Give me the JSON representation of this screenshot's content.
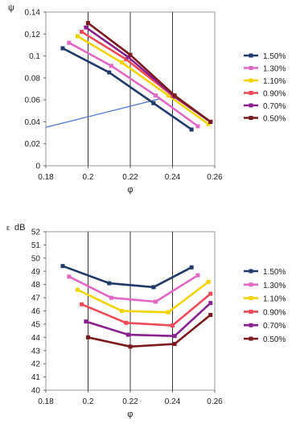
{
  "chart_data": [
    {
      "type": "line",
      "title": "",
      "xlabel": "φ",
      "ylabel": "ψ",
      "xlim": [
        0.18,
        0.26
      ],
      "ylim": [
        0,
        0.14
      ],
      "x_ticks": [
        "0.18",
        "0.2",
        "0.22",
        "0.24",
        "0.26"
      ],
      "y_ticks": [
        "0",
        "0.02",
        "0.04",
        "0.06",
        "0.08",
        "0.1",
        "0.12",
        "0.14"
      ],
      "grid": "vertical",
      "legend_position": "right",
      "series": [
        {
          "name": "1.50%",
          "color": "#1f3a68",
          "x": [
            0.188,
            0.21,
            0.231,
            0.249
          ],
          "y": [
            0.107,
            0.085,
            0.057,
            0.033
          ]
        },
        {
          "name": "1.30%",
          "color": "#e067c4",
          "x": [
            0.191,
            0.211,
            0.232,
            0.252
          ],
          "y": [
            0.112,
            0.091,
            0.064,
            0.036
          ]
        },
        {
          "name": "1.10%",
          "color": "#f0d400",
          "x": [
            0.195,
            0.216,
            0.238,
            0.257
          ],
          "y": [
            0.118,
            0.094,
            0.064,
            0.038
          ]
        },
        {
          "name": "0.90%",
          "color": "#ef4a5a",
          "x": [
            0.197,
            0.218,
            0.24,
            0.258
          ],
          "y": [
            0.122,
            0.097,
            0.064,
            0.04
          ]
        },
        {
          "name": "0.70%",
          "color": "#8a1f8f",
          "x": [
            0.199,
            0.219,
            0.241,
            0.258
          ],
          "y": [
            0.126,
            0.099,
            0.063,
            0.04
          ]
        },
        {
          "name": "0.50%",
          "color": "#7a1a1e",
          "x": [
            0.2,
            0.22,
            0.241,
            0.258
          ],
          "y": [
            0.13,
            0.101,
            0.064,
            0.04
          ]
        }
      ],
      "extra_lines": [
        {
          "color": "#4f73d6",
          "x": [
            0.18,
            0.234
          ],
          "y": [
            0.035,
            0.061
          ]
        }
      ]
    },
    {
      "type": "line",
      "title": "",
      "xlabel": "φ",
      "ylabel": "dB",
      "ylabel_prefix": "ε",
      "xlim": [
        0.18,
        0.26
      ],
      "ylim": [
        40,
        52
      ],
      "x_ticks": [
        "0.18",
        "0.2",
        "0.22",
        "0.24",
        "0.26"
      ],
      "y_ticks": [
        "40",
        "41",
        "42",
        "43",
        "44",
        "45",
        "46",
        "47",
        "48",
        "49",
        "50",
        "51",
        "52"
      ],
      "grid": "vertical",
      "legend_position": "right",
      "series": [
        {
          "name": "1.50%",
          "color": "#1f3a68",
          "x": [
            0.188,
            0.21,
            0.231,
            0.249
          ],
          "y": [
            49.4,
            48.1,
            47.8,
            49.3
          ]
        },
        {
          "name": "1.30%",
          "color": "#e067c4",
          "x": [
            0.191,
            0.211,
            0.232,
            0.252
          ],
          "y": [
            48.6,
            47.0,
            46.7,
            48.7
          ]
        },
        {
          "name": "1.10%",
          "color": "#f0d400",
          "x": [
            0.195,
            0.216,
            0.238,
            0.257
          ],
          "y": [
            47.6,
            46.0,
            45.9,
            48.2
          ]
        },
        {
          "name": "0.90%",
          "color": "#ef4a5a",
          "x": [
            0.197,
            0.218,
            0.24,
            0.258
          ],
          "y": [
            46.5,
            45.1,
            44.9,
            47.3
          ]
        },
        {
          "name": "0.70%",
          "color": "#8a1f8f",
          "x": [
            0.199,
            0.219,
            0.241,
            0.258
          ],
          "y": [
            45.2,
            44.2,
            44.1,
            46.6
          ]
        },
        {
          "name": "0.50%",
          "color": "#7a1a1e",
          "x": [
            0.2,
            0.22,
            0.241,
            0.258
          ],
          "y": [
            44.0,
            43.3,
            43.5,
            45.7
          ]
        }
      ]
    }
  ]
}
